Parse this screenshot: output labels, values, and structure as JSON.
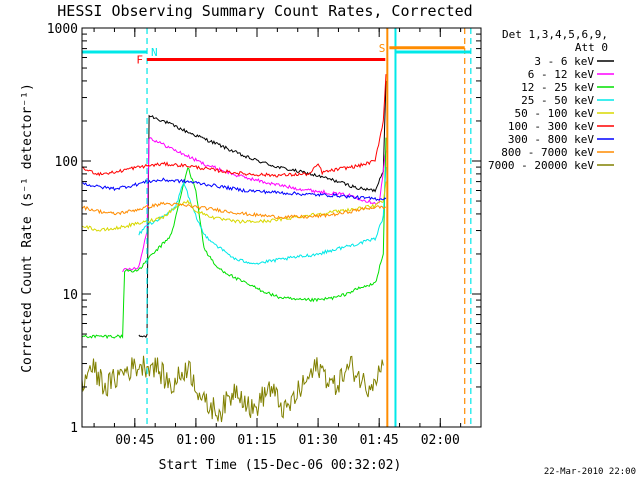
{
  "chart_data": {
    "type": "line",
    "title": "HESSI Observing Summary Count Rates, Corrected",
    "xlabel": "Start Time (15-Dec-06 00:32:02)",
    "ylabel": "Corrected Count Rate (s⁻¹ detector⁻¹)",
    "y_scale": "log",
    "ylim": [
      1,
      1000
    ],
    "y_ticks": [
      1,
      10,
      100,
      1000
    ],
    "y_tick_labels": [
      "1",
      "10",
      "100",
      "1000"
    ],
    "x_ticks": [
      "00:45",
      "01:00",
      "01:15",
      "01:30",
      "01:45",
      "02:00"
    ],
    "x_range": [
      "00:32:02",
      "02:10:00"
    ],
    "grid": false,
    "legend": {
      "placement": "right",
      "header_line1": "Det 1,3,4,5,6,9,",
      "header_line2": "Att 0",
      "entries": [
        {
          "label": "3 - 6 keV",
          "color": "#000000"
        },
        {
          "label": "6 - 12 keV",
          "color": "#ff00ff"
        },
        {
          "label": "12 - 25 keV",
          "color": "#00e000"
        },
        {
          "label": "25 - 50 keV",
          "color": "#00e8e8"
        },
        {
          "label": "50 - 100 keV",
          "color": "#d8d800"
        },
        {
          "label": "100 - 300 keV",
          "color": "#ff0000"
        },
        {
          "label": "300 - 800 keV",
          "color": "#0000ff"
        },
        {
          "label": "800 - 7000 keV",
          "color": "#ff8c00"
        },
        {
          "label": "7000 - 20000 keV",
          "color": "#808000"
        }
      ]
    },
    "flag_markers": [
      {
        "label": "F",
        "color": "#ff0000",
        "start": "00:48:00",
        "end": "01:46:30",
        "level": 580
      },
      {
        "label": "N",
        "color": "#00e8e8",
        "start": "00:32:02",
        "end": "00:48:00",
        "level": 660
      },
      {
        "label": "N",
        "color": "#00e8e8",
        "start": "01:49:00",
        "end": "02:07:30",
        "level": 660
      },
      {
        "label": "S",
        "color": "#ff8c00",
        "start": "01:47:30",
        "end": "02:06:00",
        "level": 710
      }
    ],
    "vertical_lines": [
      {
        "time": "00:48:00",
        "color": "#00e8e8",
        "style": "dashed"
      },
      {
        "time": "01:47:00",
        "color": "#ff8c00",
        "style": "solid"
      },
      {
        "time": "01:49:00",
        "color": "#00e8e8",
        "style": "solid"
      },
      {
        "time": "02:06:00",
        "color": "#ff8c00",
        "style": "dashed"
      },
      {
        "time": "02:07:30",
        "color": "#00e8e8",
        "style": "dashed"
      }
    ],
    "series": [
      {
        "name": "3 - 6 keV",
        "color": "#000000",
        "points": [
          [
            "00:46:00",
            4.8
          ],
          [
            "00:48:00",
            4.8
          ],
          [
            "00:48:30",
            220
          ],
          [
            "00:52:00",
            200
          ],
          [
            "00:58:00",
            165
          ],
          [
            "01:05:00",
            135
          ],
          [
            "01:12:00",
            108
          ],
          [
            "01:20:00",
            90
          ],
          [
            "01:28:00",
            80
          ],
          [
            "01:35:00",
            70
          ],
          [
            "01:40:00",
            62
          ],
          [
            "01:44:00",
            60
          ],
          [
            "01:46:00",
            85
          ],
          [
            "01:46:40",
            400
          ]
        ]
      },
      {
        "name": "6 - 12 keV",
        "color": "#ff00ff",
        "points": [
          [
            "00:42:00",
            15
          ],
          [
            "00:46:00",
            16
          ],
          [
            "00:48:00",
            30
          ],
          [
            "00:48:30",
            150
          ],
          [
            "00:55:00",
            120
          ],
          [
            "01:02:00",
            95
          ],
          [
            "01:10:00",
            78
          ],
          [
            "01:18:00",
            68
          ],
          [
            "01:25:00",
            62
          ],
          [
            "01:32:00",
            58
          ],
          [
            "01:38:00",
            55
          ],
          [
            "01:42:00",
            50
          ],
          [
            "01:45:00",
            48
          ],
          [
            "01:46:40",
            120
          ]
        ]
      },
      {
        "name": "12 - 25 keV",
        "color": "#00e000",
        "points": [
          [
            "00:32:02",
            4.8
          ],
          [
            "00:42:00",
            4.8
          ],
          [
            "00:42:30",
            15
          ],
          [
            "00:46:00",
            15
          ],
          [
            "00:48:00",
            18
          ],
          [
            "00:52:00",
            24
          ],
          [
            "00:54:00",
            28
          ],
          [
            "00:56:00",
            50
          ],
          [
            "00:58:00",
            90
          ],
          [
            "01:00:00",
            60
          ],
          [
            "01:02:00",
            22
          ],
          [
            "01:05:00",
            16
          ],
          [
            "01:10:00",
            13
          ],
          [
            "01:15:00",
            11
          ],
          [
            "01:20:00",
            9.5
          ],
          [
            "01:25:00",
            9
          ],
          [
            "01:30:00",
            9
          ],
          [
            "01:35:00",
            9.5
          ],
          [
            "01:40:00",
            11
          ],
          [
            "01:44:00",
            12
          ],
          [
            "01:46:00",
            20
          ],
          [
            "01:46:40",
            150
          ]
        ]
      },
      {
        "name": "25 - 50 keV",
        "color": "#00e8e8",
        "points": [
          [
            "00:46:00",
            28
          ],
          [
            "00:48:00",
            33
          ],
          [
            "00:52:00",
            38
          ],
          [
            "00:55:00",
            45
          ],
          [
            "00:57:00",
            70
          ],
          [
            "00:59:00",
            45
          ],
          [
            "01:02:00",
            28
          ],
          [
            "01:06:00",
            22
          ],
          [
            "01:10:00",
            18
          ],
          [
            "01:15:00",
            17
          ],
          [
            "01:20:00",
            18
          ],
          [
            "01:25:00",
            19
          ],
          [
            "01:30:00",
            20
          ],
          [
            "01:35:00",
            22
          ],
          [
            "01:40:00",
            24
          ],
          [
            "01:44:00",
            26
          ],
          [
            "01:46:00",
            38
          ],
          [
            "01:46:40",
            90
          ]
        ]
      },
      {
        "name": "50 - 100 keV",
        "color": "#d8d800",
        "points": [
          [
            "00:32:02",
            33
          ],
          [
            "00:36:00",
            30
          ],
          [
            "00:40:00",
            31
          ],
          [
            "00:44:00",
            33
          ],
          [
            "00:48:00",
            35
          ],
          [
            "00:52:00",
            38
          ],
          [
            "00:55:00",
            45
          ],
          [
            "00:58:00",
            50
          ],
          [
            "01:00:00",
            42
          ],
          [
            "01:05:00",
            37
          ],
          [
            "01:10:00",
            35
          ],
          [
            "01:15:00",
            35
          ],
          [
            "01:20:00",
            36
          ],
          [
            "01:25:00",
            38
          ],
          [
            "01:30:00",
            40
          ],
          [
            "01:35:00",
            42
          ],
          [
            "01:40:00",
            44
          ],
          [
            "01:44:00",
            46
          ],
          [
            "01:46:00",
            50
          ],
          [
            "01:46:40",
            70
          ]
        ]
      },
      {
        "name": "100 - 300 keV",
        "color": "#ff0000",
        "points": [
          [
            "00:32:02",
            88
          ],
          [
            "00:36:00",
            80
          ],
          [
            "00:40:00",
            82
          ],
          [
            "00:44:00",
            88
          ],
          [
            "00:48:00",
            92
          ],
          [
            "00:52:00",
            95
          ],
          [
            "00:58:00",
            92
          ],
          [
            "01:05:00",
            85
          ],
          [
            "01:12:00",
            80
          ],
          [
            "01:20:00",
            78
          ],
          [
            "01:28:00",
            80
          ],
          [
            "01:30:00",
            95
          ],
          [
            "01:31:00",
            82
          ],
          [
            "01:36:00",
            88
          ],
          [
            "01:40:00",
            92
          ],
          [
            "01:44:00",
            100
          ],
          [
            "01:46:00",
            200
          ],
          [
            "01:46:40",
            450
          ]
        ]
      },
      {
        "name": "300 - 800 keV",
        "color": "#0000ff",
        "points": [
          [
            "00:32:02",
            68
          ],
          [
            "00:36:00",
            64
          ],
          [
            "00:40:00",
            62
          ],
          [
            "00:44:00",
            65
          ],
          [
            "00:48:00",
            70
          ],
          [
            "00:52:00",
            72
          ],
          [
            "00:58:00",
            70
          ],
          [
            "01:05:00",
            65
          ],
          [
            "01:12:00",
            60
          ],
          [
            "01:20:00",
            58
          ],
          [
            "01:28:00",
            56
          ],
          [
            "01:35:00",
            55
          ],
          [
            "01:40:00",
            53
          ],
          [
            "01:44:00",
            52
          ],
          [
            "01:46:40",
            52
          ]
        ]
      },
      {
        "name": "800 - 7000 keV",
        "color": "#ff8c00",
        "points": [
          [
            "00:32:02",
            45
          ],
          [
            "00:36:00",
            42
          ],
          [
            "00:40:00",
            40
          ],
          [
            "00:44:00",
            42
          ],
          [
            "00:48:00",
            45
          ],
          [
            "00:52:00",
            48
          ],
          [
            "00:58:00",
            46
          ],
          [
            "01:05:00",
            43
          ],
          [
            "01:12:00",
            40
          ],
          [
            "01:20:00",
            38
          ],
          [
            "01:28:00",
            38
          ],
          [
            "01:35:00",
            40
          ],
          [
            "01:40:00",
            43
          ],
          [
            "01:44:00",
            45
          ],
          [
            "01:46:40",
            45
          ]
        ]
      },
      {
        "name": "7000 - 20000 keV",
        "color": "#808000",
        "points": [
          [
            "00:32:02",
            1.9
          ],
          [
            "00:34:00",
            2.9
          ],
          [
            "00:38:00",
            2.0
          ],
          [
            "00:42:00",
            2.6
          ],
          [
            "00:46:00",
            2.9
          ],
          [
            "00:50:00",
            2.9
          ],
          [
            "00:54:00",
            2.0
          ],
          [
            "00:58:00",
            2.9
          ],
          [
            "01:02:00",
            1.5
          ],
          [
            "01:06:00",
            1.3
          ],
          [
            "01:10:00",
            2.0
          ],
          [
            "01:14:00",
            1.3
          ],
          [
            "01:18:00",
            2.0
          ],
          [
            "01:22:00",
            1.3
          ],
          [
            "01:26:00",
            2.0
          ],
          [
            "01:30:00",
            2.9
          ],
          [
            "01:34:00",
            2.0
          ],
          [
            "01:38:00",
            2.9
          ],
          [
            "01:42:00",
            2.0
          ],
          [
            "01:46:00",
            2.9
          ]
        ]
      }
    ]
  },
  "footer": {
    "timestamp": "22-Mar-2010 22:00"
  }
}
